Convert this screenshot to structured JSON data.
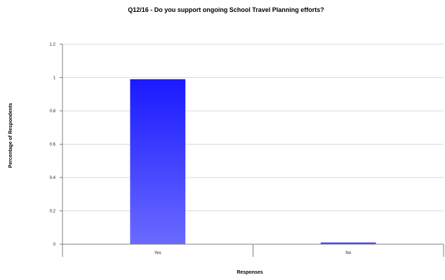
{
  "chart_data": {
    "type": "bar",
    "title": "Q12/16 - Do you support ongoing School Travel Planning efforts?",
    "xlabel": "Responses",
    "ylabel": "Percentage of Respondents",
    "categories": [
      "Yes",
      "No"
    ],
    "values": [
      0.99,
      0.01
    ],
    "ylim": [
      0,
      1.2
    ],
    "yticks": [
      "0",
      "0.2",
      "0.4",
      "0.6",
      "0.8",
      "1",
      "1.2"
    ],
    "grid": true,
    "legend": "none",
    "bar_color_top": "#1a1aff",
    "bar_color_bottom": "#6a6aff"
  }
}
